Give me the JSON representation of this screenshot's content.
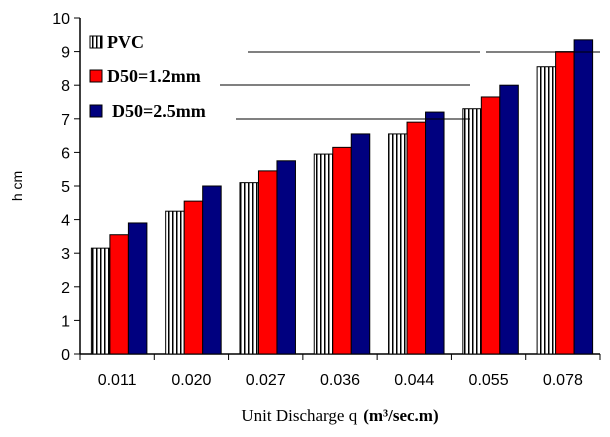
{
  "chart_data": {
    "type": "bar",
    "ylabel": "h cm",
    "xlabel_prefix": "Unit Discharge q",
    "xlabel_unit": "(m³/sec.m)",
    "ylim": [
      0,
      10
    ],
    "yticks": [
      0,
      1,
      2,
      3,
      4,
      5,
      6,
      7,
      8,
      9,
      10
    ],
    "categories": [
      "0.011",
      "0.020",
      "0.027",
      "0.036",
      "0.044",
      "0.055",
      "0.078"
    ],
    "series": [
      {
        "name": "PVC",
        "color": "#ffffff",
        "pattern": "vertical-stripes",
        "values": [
          3.15,
          4.25,
          5.1,
          5.95,
          6.55,
          7.3,
          8.55
        ]
      },
      {
        "name": "D50=1.2mm",
        "color": "#ff0000",
        "values": [
          3.55,
          4.55,
          5.45,
          6.15,
          6.9,
          7.65,
          9.0
        ]
      },
      {
        "name": "D50=2.5mm",
        "color": "#00007f",
        "values": [
          3.9,
          5.0,
          5.75,
          6.55,
          7.2,
          8.0,
          9.35
        ]
      }
    ],
    "grid": false,
    "legend_position": "top-left"
  }
}
